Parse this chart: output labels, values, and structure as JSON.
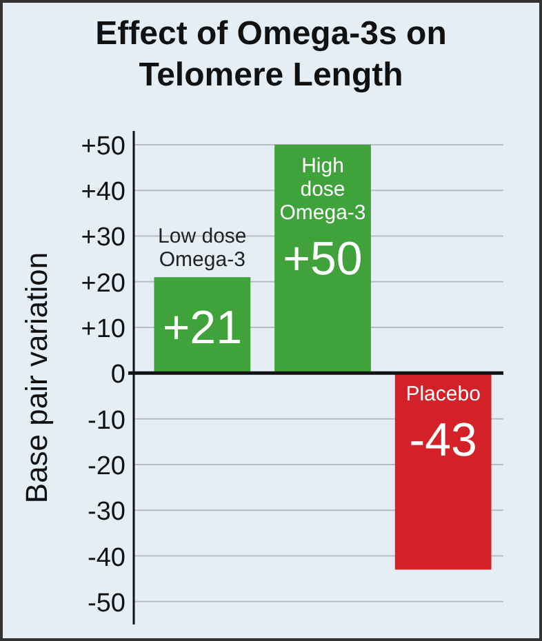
{
  "chart_data": {
    "type": "bar",
    "title": "Effect of Omega-3s on Telomere Length",
    "ylabel": "Base pair variation",
    "categories": [
      "Low dose Omega-3",
      "High dose Omega-3",
      "Placebo"
    ],
    "values": [
      21,
      50,
      -43
    ],
    "colors": [
      "#3fa23a",
      "#3fa23a",
      "#d42027"
    ],
    "value_labels": [
      "+21",
      "+50",
      "-43"
    ],
    "ylim": [
      -55,
      53
    ],
    "yticks": [
      {
        "value": 50,
        "label": "+50"
      },
      {
        "value": 40,
        "label": "+40"
      },
      {
        "value": 30,
        "label": "+30"
      },
      {
        "value": 20,
        "label": "+20"
      },
      {
        "value": 10,
        "label": "+10"
      },
      0,
      -10,
      -20,
      -30,
      -40,
      -50
    ],
    "grid": "y"
  }
}
